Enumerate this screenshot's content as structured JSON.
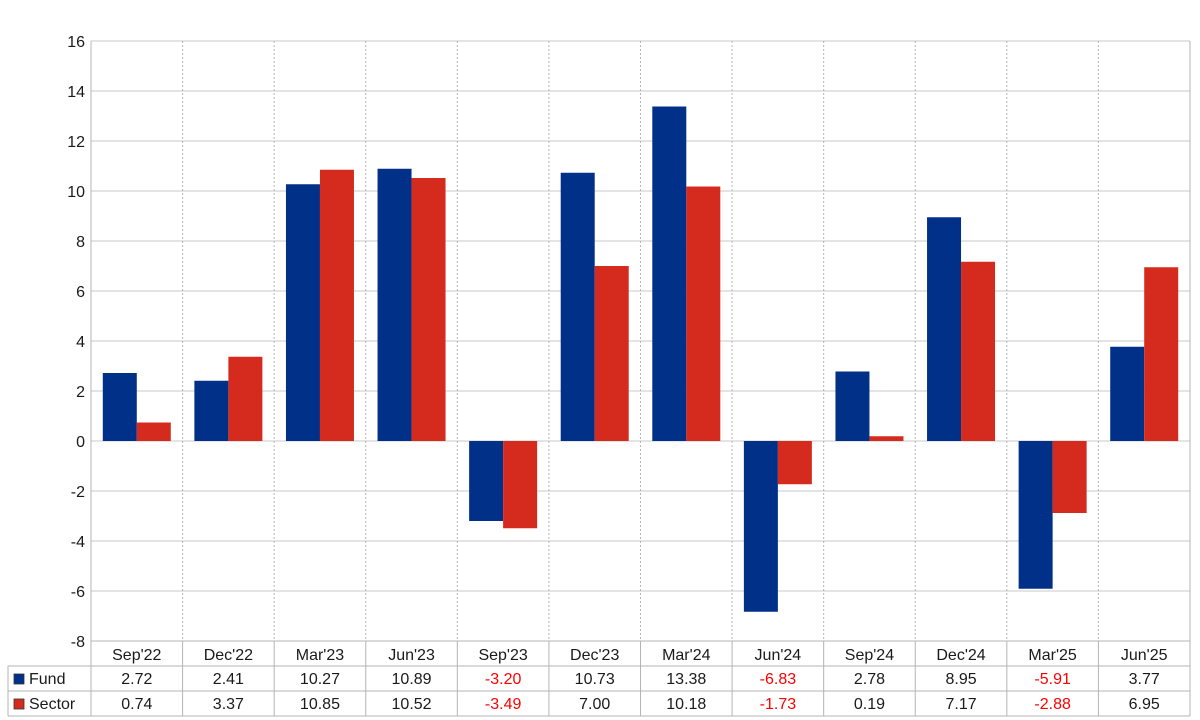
{
  "chart_data": {
    "type": "bar",
    "categories": [
      "Sep'22",
      "Dec'22",
      "Mar'23",
      "Jun'23",
      "Sep'23",
      "Dec'23",
      "Mar'24",
      "Jun'24",
      "Sep'24",
      "Dec'24",
      "Mar'25",
      "Jun'25"
    ],
    "series": [
      {
        "name": "Fund",
        "color": "#003087",
        "values": [
          2.72,
          2.41,
          10.27,
          10.89,
          -3.2,
          10.73,
          13.38,
          -6.83,
          2.78,
          8.95,
          -5.91,
          3.77
        ],
        "labels": [
          "2.72",
          "2.41",
          "10.27",
          "10.89",
          "-3.20",
          "10.73",
          "13.38",
          "-6.83",
          "2.78",
          "8.95",
          "-5.91",
          "3.77"
        ]
      },
      {
        "name": "Sector",
        "color": "#d52b1e",
        "values": [
          0.74,
          3.37,
          10.85,
          10.52,
          -3.49,
          7.0,
          10.18,
          -1.73,
          0.19,
          7.17,
          -2.88,
          6.95
        ],
        "labels": [
          "0.74",
          "3.37",
          "10.85",
          "10.52",
          "-3.49",
          "7.00",
          "10.18",
          "-1.73",
          "0.19",
          "7.17",
          "-2.88",
          "6.95"
        ]
      }
    ],
    "yticks": [
      "-8",
      "-6",
      "-4",
      "-2",
      "0",
      "2",
      "4",
      "6",
      "8",
      "10",
      "12",
      "14",
      "16"
    ],
    "ylim": [
      -8,
      16
    ],
    "title": "",
    "xlabel": "",
    "ylabel": "",
    "grid": true,
    "legend": "data-table-below",
    "negative_value_color": "#ff0000"
  }
}
